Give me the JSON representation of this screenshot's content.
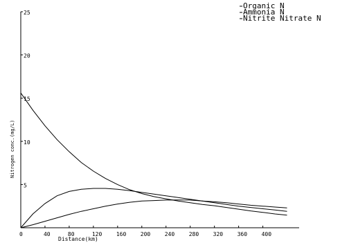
{
  "chart_data": {
    "type": "line",
    "xlabel": "Distance(km)",
    "ylabel": "Nitrogen conc.(mg/L)",
    "xlim": [
      0,
      460
    ],
    "ylim": [
      0,
      25
    ],
    "xticks": [
      0,
      40,
      80,
      120,
      160,
      200,
      240,
      280,
      320,
      360,
      400
    ],
    "yticks": [
      5,
      10,
      15,
      20,
      25
    ],
    "legend_position": "top-right",
    "series": [
      {
        "name": "Organic N",
        "points": [
          [
            0,
            15.6
          ],
          [
            20,
            13.6
          ],
          [
            40,
            11.8
          ],
          [
            60,
            10.2
          ],
          [
            80,
            8.8
          ],
          [
            100,
            7.55
          ],
          [
            120,
            6.55
          ],
          [
            140,
            5.7
          ],
          [
            160,
            5.0
          ],
          [
            180,
            4.4
          ],
          [
            200,
            3.95
          ],
          [
            220,
            3.6
          ],
          [
            240,
            3.35
          ],
          [
            260,
            3.1
          ],
          [
            280,
            2.9
          ],
          [
            300,
            2.7
          ],
          [
            320,
            2.55
          ],
          [
            340,
            2.35
          ],
          [
            360,
            2.15
          ],
          [
            380,
            1.95
          ],
          [
            400,
            1.78
          ],
          [
            420,
            1.6
          ],
          [
            440,
            1.45
          ]
        ]
      },
      {
        "name": "Ammonia N",
        "points": [
          [
            0,
            0.0
          ],
          [
            20,
            1.6
          ],
          [
            40,
            2.8
          ],
          [
            60,
            3.7
          ],
          [
            80,
            4.2
          ],
          [
            100,
            4.45
          ],
          [
            120,
            4.55
          ],
          [
            140,
            4.55
          ],
          [
            160,
            4.45
          ],
          [
            180,
            4.3
          ],
          [
            200,
            4.1
          ],
          [
            220,
            3.9
          ],
          [
            240,
            3.7
          ],
          [
            260,
            3.5
          ],
          [
            280,
            3.3
          ],
          [
            300,
            3.1
          ],
          [
            320,
            2.9
          ],
          [
            340,
            2.7
          ],
          [
            360,
            2.5
          ],
          [
            380,
            2.35
          ],
          [
            400,
            2.2
          ],
          [
            420,
            2.05
          ],
          [
            440,
            1.9
          ]
        ]
      },
      {
        "name": "Nitrite Nitrate N",
        "points": [
          [
            0,
            0.0
          ],
          [
            20,
            0.35
          ],
          [
            40,
            0.75
          ],
          [
            60,
            1.15
          ],
          [
            80,
            1.55
          ],
          [
            100,
            1.9
          ],
          [
            120,
            2.2
          ],
          [
            140,
            2.5
          ],
          [
            160,
            2.75
          ],
          [
            180,
            2.95
          ],
          [
            200,
            3.1
          ],
          [
            220,
            3.15
          ],
          [
            240,
            3.2
          ],
          [
            260,
            3.22
          ],
          [
            280,
            3.2
          ],
          [
            300,
            3.1
          ],
          [
            320,
            3.0
          ],
          [
            340,
            2.9
          ],
          [
            360,
            2.75
          ],
          [
            380,
            2.6
          ],
          [
            400,
            2.5
          ],
          [
            420,
            2.4
          ],
          [
            440,
            2.3
          ]
        ]
      }
    ]
  }
}
